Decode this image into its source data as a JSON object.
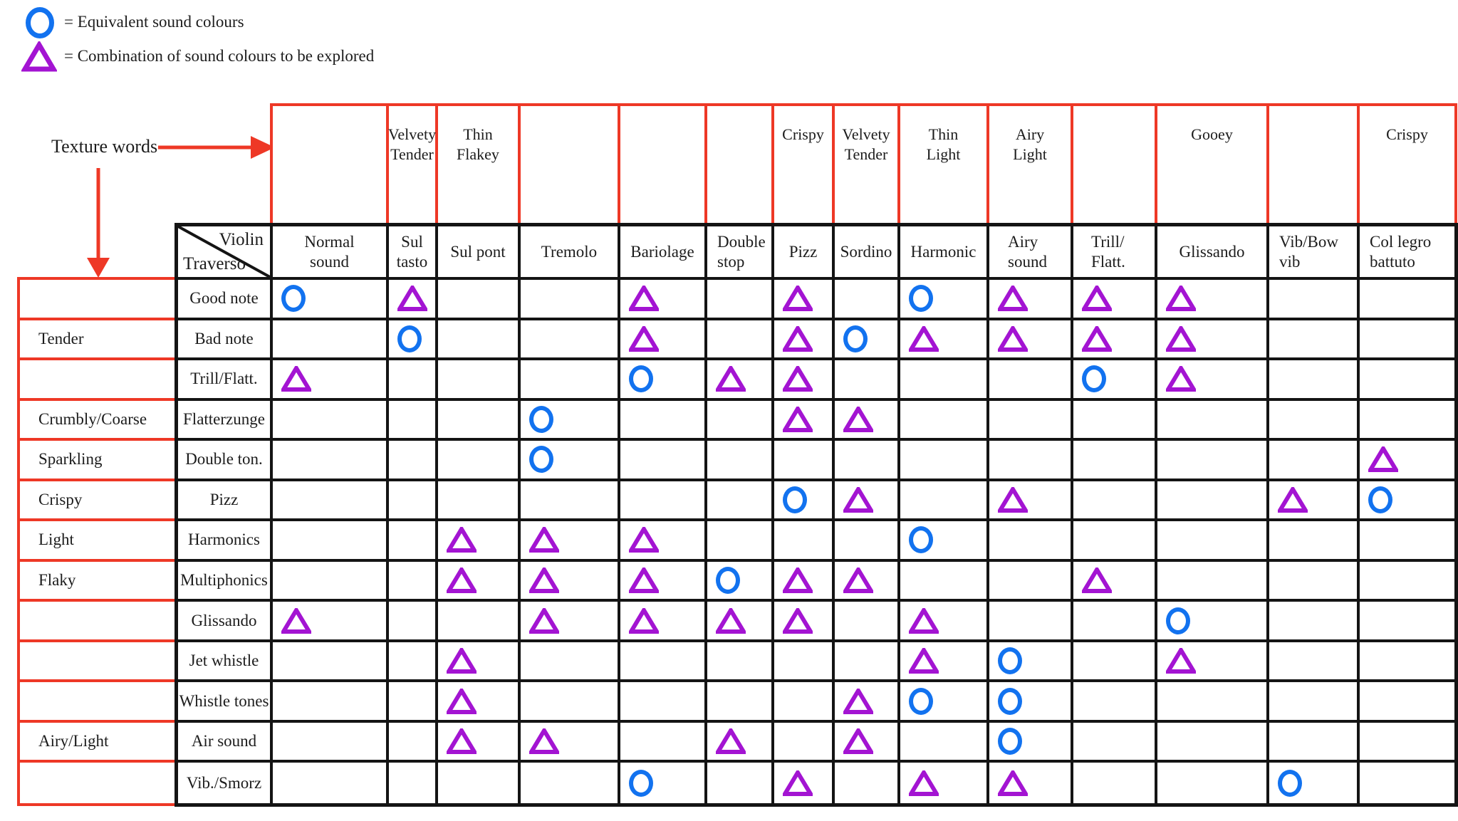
{
  "legend": {
    "equivalent": "= Equivalent sound colours",
    "combination": "= Combination of sound colours to be explored"
  },
  "texture_words_label": "Texture words",
  "corner": {
    "top_right": "Violin",
    "bottom_left": "Traverso"
  },
  "colors": {
    "circle_blue": "#1272ef",
    "triangle_purple": "#a314d2",
    "grid_red": "#ee3826",
    "grid_black": "#141414"
  },
  "columns": [
    {
      "technique": "Normal sound",
      "texture": ""
    },
    {
      "technique": "Sul tasto",
      "texture": "Velvety Tender"
    },
    {
      "technique": "Sul pont",
      "texture": "Thin Flakey"
    },
    {
      "technique": "Tremolo",
      "texture": ""
    },
    {
      "technique": "Bariolage",
      "texture": ""
    },
    {
      "technique": "Double stop",
      "texture": ""
    },
    {
      "technique": "Pizz",
      "texture": "Crispy"
    },
    {
      "technique": "Sordino",
      "texture": "Velvety Tender"
    },
    {
      "technique": "Harmonic",
      "texture": "Thin Light"
    },
    {
      "technique": "Airy sound",
      "texture": "Airy Light"
    },
    {
      "technique": "Trill/ Flatt.",
      "texture": ""
    },
    {
      "technique": "Glissando",
      "texture": "Gooey"
    },
    {
      "technique": "Vib/Bow vib",
      "texture": ""
    },
    {
      "technique": "Col legro battuto",
      "texture": "Crispy"
    }
  ],
  "rows": [
    {
      "texture": "",
      "technique": "Good note",
      "marks": [
        "circle",
        "triangle",
        "",
        "",
        "triangle",
        "",
        "triangle",
        "",
        "circle",
        "triangle",
        "triangle",
        "triangle",
        "",
        ""
      ]
    },
    {
      "texture": "Tender",
      "technique": "Bad note",
      "marks": [
        "",
        "circle",
        "",
        "",
        "triangle",
        "",
        "triangle",
        "circle",
        "triangle",
        "triangle",
        "triangle",
        "triangle",
        "",
        ""
      ]
    },
    {
      "texture": "",
      "technique": "Trill/Flatt.",
      "marks": [
        "triangle",
        "",
        "",
        "",
        "circle",
        "triangle",
        "triangle",
        "",
        "",
        "",
        "circle",
        "triangle",
        "",
        ""
      ]
    },
    {
      "texture": "Crumbly/Coarse",
      "technique": "Flatterzunge",
      "marks": [
        "",
        "",
        "",
        "circle",
        "",
        "",
        "triangle",
        "triangle",
        "",
        "",
        "",
        "",
        "",
        ""
      ]
    },
    {
      "texture": "Sparkling",
      "technique": "Double ton.",
      "marks": [
        "",
        "",
        "",
        "circle",
        "",
        "",
        "",
        "",
        "",
        "",
        "",
        "",
        "",
        "triangle"
      ]
    },
    {
      "texture": "Crispy",
      "technique": "Pizz",
      "marks": [
        "",
        "",
        "",
        "",
        "",
        "",
        "circle",
        "triangle",
        "",
        "triangle",
        "",
        "",
        "triangle",
        "circle"
      ]
    },
    {
      "texture": "Light",
      "technique": "Harmonics",
      "marks": [
        "",
        "",
        "triangle",
        "triangle",
        "triangle",
        "",
        "",
        "",
        "circle",
        "",
        "",
        "",
        "",
        ""
      ]
    },
    {
      "texture": "Flaky",
      "technique": "Multiphonics",
      "marks": [
        "",
        "",
        "triangle",
        "triangle",
        "triangle",
        "circle",
        "triangle",
        "triangle",
        "",
        "",
        "triangle",
        "",
        "",
        ""
      ]
    },
    {
      "texture": "",
      "technique": "Glissando",
      "marks": [
        "triangle",
        "",
        "",
        "triangle",
        "triangle",
        "triangle",
        "triangle",
        "",
        "triangle",
        "",
        "",
        "circle",
        "",
        ""
      ]
    },
    {
      "texture": "",
      "technique": "Jet whistle",
      "marks": [
        "",
        "",
        "triangle",
        "",
        "",
        "",
        "",
        "",
        "triangle",
        "circle",
        "",
        "triangle",
        "",
        ""
      ]
    },
    {
      "texture": "",
      "technique": "Whistle tones",
      "marks": [
        "",
        "",
        "triangle",
        "",
        "",
        "",
        "",
        "triangle",
        "circle",
        "circle",
        "",
        "",
        "",
        ""
      ]
    },
    {
      "texture": "Airy/Light",
      "technique": "Air sound",
      "marks": [
        "",
        "",
        "triangle",
        "triangle",
        "",
        "triangle",
        "",
        "triangle",
        "",
        "circle",
        "",
        "",
        "",
        ""
      ]
    },
    {
      "texture": "",
      "technique": "Vib./Smorz",
      "marks": [
        "",
        "",
        "",
        "",
        "circle",
        "",
        "triangle",
        "",
        "triangle",
        "triangle",
        "",
        "",
        "circle",
        ""
      ]
    }
  ]
}
